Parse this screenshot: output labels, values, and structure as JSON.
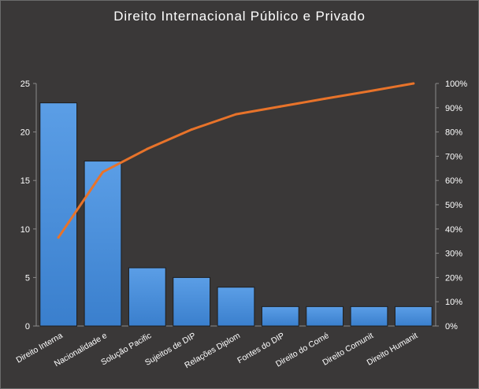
{
  "chart_data": {
    "type": "bar",
    "title": "Direito Internacional Público e Privado",
    "categories": [
      "Direito Interna",
      "Nacionalidade e",
      "Solução Pacific",
      "Sujeitos de DIP",
      "Relações Diplom",
      "Fontes do DIP",
      "Direito do Comé",
      "Direito Comunit",
      "Direito Humanit"
    ],
    "series": [
      {
        "type": "bar",
        "values": [
          23,
          17,
          6,
          5,
          4,
          2,
          2,
          2,
          2
        ],
        "color": "#4a90d9"
      },
      {
        "type": "line",
        "axis": "right",
        "values": [
          36.5,
          63.5,
          73.0,
          81.0,
          87.3,
          90.5,
          93.7,
          96.8,
          100
        ],
        "color": "#e8732a"
      }
    ],
    "ylim": [
      0,
      25
    ],
    "yticks": [
      0,
      5,
      10,
      15,
      20,
      25
    ],
    "y2lim": [
      0,
      100
    ],
    "y2ticks": [
      "0%",
      "10%",
      "20%",
      "30%",
      "40%",
      "50%",
      "60%",
      "70%",
      "80%",
      "90%",
      "100%"
    ],
    "grid": false,
    "legend": "none",
    "background": "#3a3838"
  }
}
